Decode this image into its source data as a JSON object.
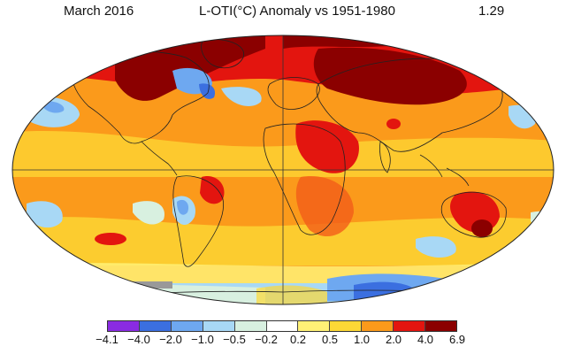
{
  "header": {
    "period": "March 2016",
    "title": "L-OTI(°C) Anomaly vs 1951-1980",
    "global_mean": "1.29"
  },
  "legend": {
    "colors": [
      "#8a2be2",
      "#3b6fe0",
      "#6ea8f0",
      "#a8d8f5",
      "#d8f0e0",
      "#ffffff",
      "#fff176",
      "#fdd835",
      "#fb9a1b",
      "#f25c19",
      "#e3150f",
      "#8b0000"
    ],
    "labels": [
      "−4.1",
      "−4.0",
      "−2.0",
      "−1.0",
      "−0.5",
      "−0.2",
      "0.2",
      "0.5",
      "1.0",
      "2.0",
      "4.0",
      "6.9"
    ]
  }
}
